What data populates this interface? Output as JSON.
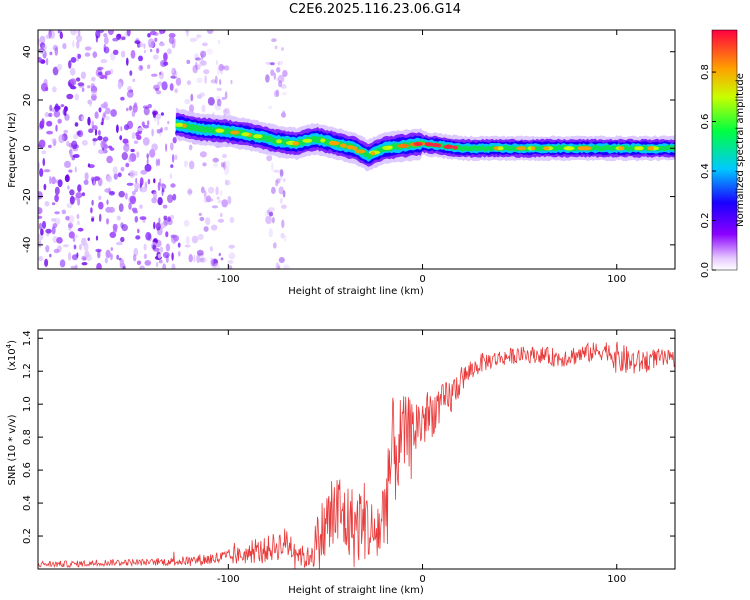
{
  "title": "C2E6.2025.116.23.06.G14",
  "chart_data": [
    {
      "type": "heatmap",
      "xlabel": "Height of straight line (km)",
      "ylabel": "Frequency (Hz)",
      "xlim": [
        -198,
        130
      ],
      "ylim": [
        -50,
        49
      ],
      "x_ticks": [
        -100,
        0,
        100
      ],
      "y_ticks": [
        -40,
        -20,
        0,
        20,
        40
      ],
      "colorbar": {
        "label": "Normalized spectral amplitude",
        "range": [
          0,
          0.97
        ],
        "ticks": [
          0.0,
          0.2,
          0.4,
          0.6,
          0.8
        ],
        "tick_labels": [
          "0.0",
          "0.2",
          "0.4",
          "0.6",
          "0.8"
        ]
      },
      "ridge": {
        "x": [
          -127,
          -115,
          -100,
          -85,
          -75,
          -65,
          -55,
          -45,
          -35,
          -28,
          -20,
          -10,
          0,
          10,
          20,
          40,
          60,
          80,
          100,
          130
        ],
        "freq": [
          10,
          8,
          7,
          5,
          3,
          2,
          4,
          2,
          0,
          -3,
          0,
          1,
          2,
          1,
          0,
          0,
          0,
          0,
          0,
          0
        ]
      },
      "noise_region_x": [
        -198,
        -125
      ]
    },
    {
      "type": "line",
      "xlabel": "Height of straight line (km)",
      "ylabel": "SNR (10 * v/v)",
      "y_scale_label": "(x10",
      "y_scale_exp": "4",
      "xlim": [
        -198,
        130
      ],
      "ylim": [
        0,
        1.45
      ],
      "x_ticks": [
        -100,
        0,
        100
      ],
      "y_ticks": [
        0.2,
        0.4,
        0.6,
        0.8,
        1.0,
        1.2,
        1.4
      ],
      "y_tick_labels": [
        "0.2",
        "0.4",
        "0.6",
        "0.8",
        "1.0",
        "1.2",
        "1.4"
      ],
      "line_color": "#e83a3a",
      "x": [
        -198,
        -180,
        -160,
        -140,
        -120,
        -100,
        -90,
        -80,
        -70,
        -65,
        -60,
        -55,
        -50,
        -45,
        -40,
        -35,
        -30,
        -25,
        -20,
        -18,
        -15,
        -12,
        -10,
        -5,
        0,
        5,
        10,
        15,
        20,
        25,
        30,
        40,
        50,
        60,
        70,
        80,
        90,
        95,
        100,
        110,
        120,
        130
      ],
      "snr": [
        0.03,
        0.03,
        0.04,
        0.04,
        0.05,
        0.07,
        0.09,
        0.12,
        0.16,
        0.12,
        0.05,
        0.15,
        0.25,
        0.35,
        0.3,
        0.25,
        0.3,
        0.2,
        0.3,
        0.55,
        0.7,
        0.75,
        0.8,
        0.85,
        0.9,
        0.95,
        1.0,
        1.05,
        1.15,
        1.2,
        1.25,
        1.28,
        1.3,
        1.3,
        1.28,
        1.3,
        1.32,
        1.33,
        1.28,
        1.25,
        1.28,
        1.27
      ],
      "variability": [
        0.02,
        0.02,
        0.02,
        0.02,
        0.03,
        0.05,
        0.06,
        0.08,
        0.1,
        0.1,
        0.05,
        0.15,
        0.25,
        0.3,
        0.25,
        0.25,
        0.25,
        0.2,
        0.3,
        0.4,
        0.35,
        0.3,
        0.25,
        0.2,
        0.18,
        0.15,
        0.12,
        0.12,
        0.08,
        0.06,
        0.06,
        0.05,
        0.05,
        0.05,
        0.06,
        0.06,
        0.06,
        0.06,
        0.1,
        0.08,
        0.06,
        0.05
      ]
    }
  ]
}
